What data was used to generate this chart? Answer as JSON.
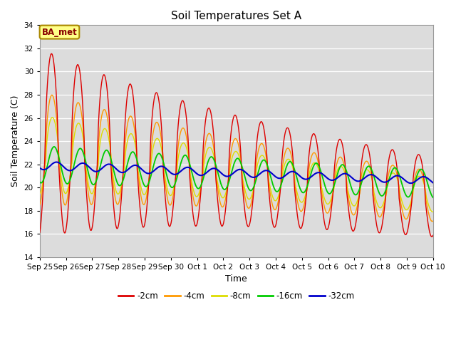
{
  "title": "Soil Temperatures Set A",
  "xlabel": "Time",
  "ylabel": "Soil Temperature (C)",
  "ylim": [
    14,
    34
  ],
  "yticks": [
    14,
    16,
    18,
    20,
    22,
    24,
    26,
    28,
    30,
    32,
    34
  ],
  "colors": {
    "-2cm": "#dd0000",
    "-4cm": "#ff9900",
    "-8cm": "#dddd00",
    "-16cm": "#00cc00",
    "-32cm": "#0000cc"
  },
  "legend_label": "BA_met",
  "xtick_labels": [
    "Sep 25",
    "Sep 26",
    "Sep 27",
    "Sep 28",
    "Sep 29",
    "Sep 30",
    "Oct 1",
    "Oct 2",
    "Oct 3",
    "Oct 4",
    "Oct 5",
    "Oct 6",
    "Oct 7",
    "Oct 8",
    "Oct 9",
    "Oct 10"
  ],
  "background_color": "#dcdcdc",
  "fig_bg_color": "#ffffff",
  "n_days": 15,
  "n_per_day": 48
}
